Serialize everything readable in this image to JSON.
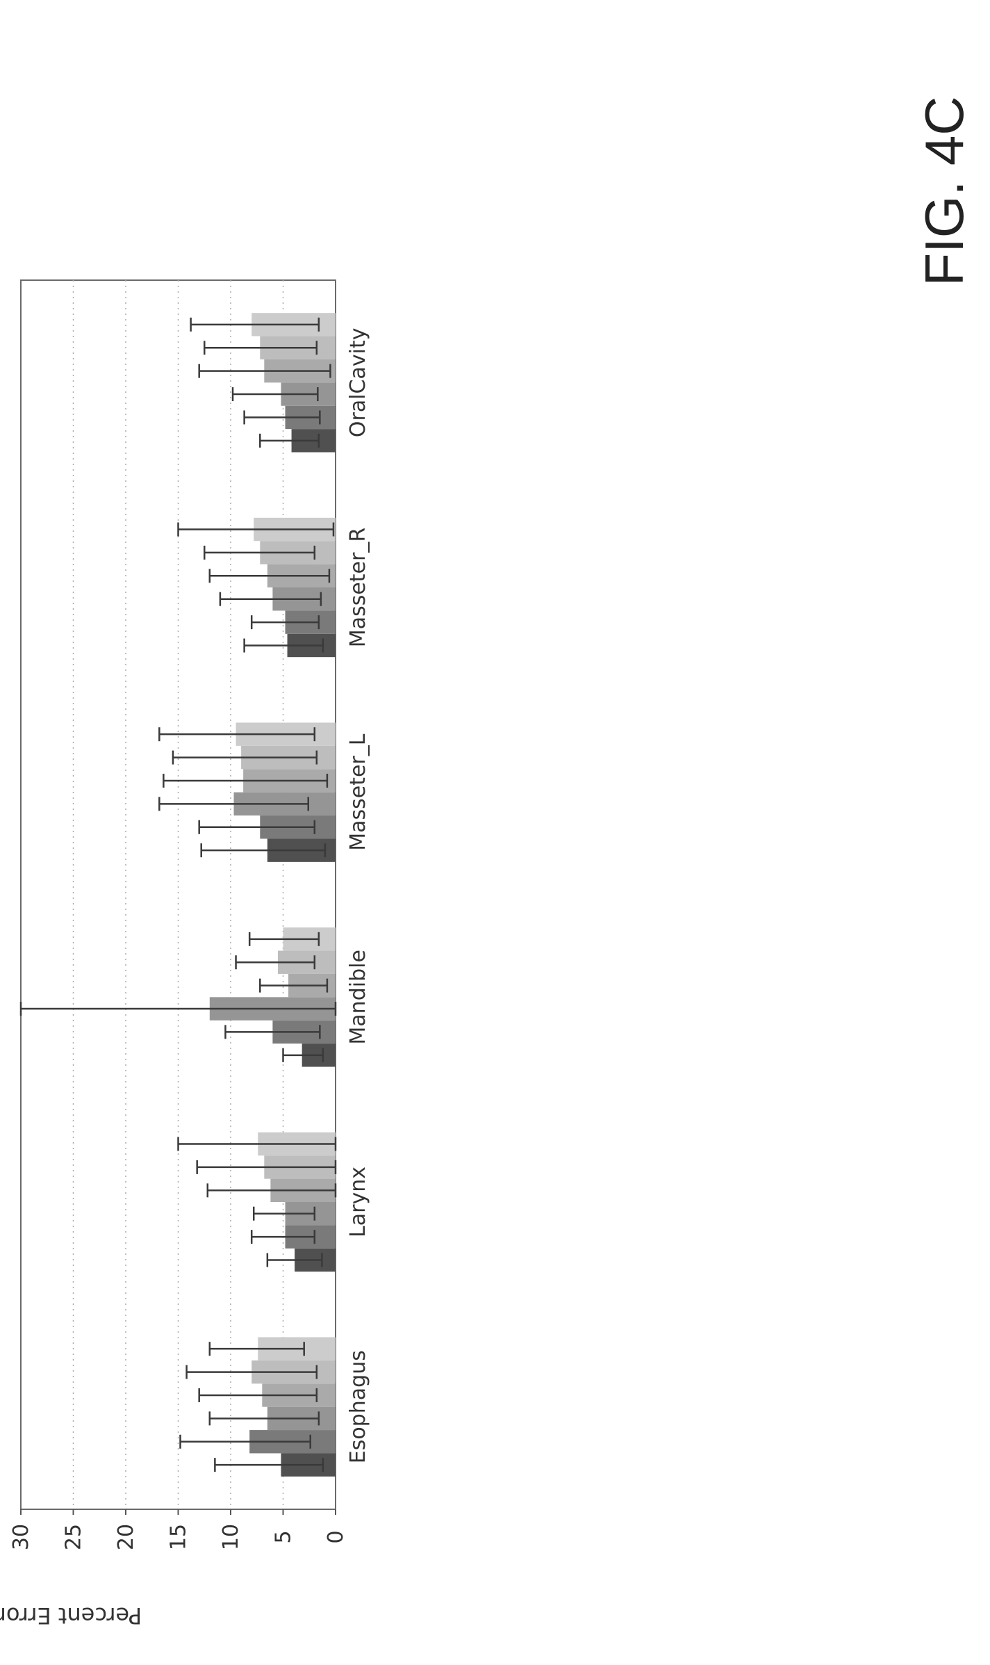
{
  "figure_label": "FIG. 4C",
  "chart_data": {
    "type": "bar",
    "orientation": "rotated-90-ccw",
    "title": "",
    "xlabel": "",
    "ylabel": "Percent Error",
    "ylim": [
      0,
      30
    ],
    "yticks": [
      "0",
      "5",
      "10",
      "15",
      "20",
      "25",
      "30"
    ],
    "grid": "horizontal dotted",
    "categories": [
      "Esophagus",
      "Larynx",
      "Mandible",
      "Masseter_L",
      "Masseter_R",
      "OralCavity"
    ],
    "series_count_per_category": 6,
    "colors": [
      "#505050",
      "#7a7a7a",
      "#959595",
      "#aaaaaa",
      "#bdbdbd",
      "#cccccc"
    ],
    "series": [
      {
        "values": [
          5.2,
          3.9,
          3.2,
          6.5,
          4.6,
          4.2
        ],
        "error_low": [
          1.2,
          1.3,
          1.2,
          1.0,
          1.2,
          1.6
        ],
        "error_high": [
          11.5,
          6.5,
          5.0,
          12.8,
          8.7,
          7.2
        ]
      },
      {
        "values": [
          8.2,
          4.8,
          6.0,
          7.2,
          4.8,
          4.8
        ],
        "error_low": [
          2.4,
          2.0,
          1.5,
          2.0,
          1.6,
          1.5
        ],
        "error_high": [
          14.8,
          8.0,
          10.5,
          13.0,
          8.0,
          8.7
        ]
      },
      {
        "values": [
          6.5,
          4.8,
          12.0,
          9.7,
          6.0,
          5.2
        ],
        "error_low": [
          1.6,
          2.0,
          0.0,
          2.6,
          1.4,
          1.7
        ],
        "error_high": [
          12.0,
          7.8,
          30.0,
          16.8,
          11.0,
          9.8
        ]
      },
      {
        "values": [
          7.0,
          6.2,
          4.5,
          8.8,
          6.5,
          6.8
        ],
        "error_low": [
          1.8,
          0.0,
          0.8,
          0.8,
          0.6,
          0.5
        ],
        "error_high": [
          13.0,
          12.2,
          7.2,
          16.4,
          12.0,
          13.0
        ]
      },
      {
        "values": [
          8.0,
          6.8,
          5.5,
          9.0,
          7.2,
          7.2
        ],
        "error_low": [
          1.8,
          0.0,
          2.0,
          1.8,
          2.0,
          1.8
        ],
        "error_high": [
          14.2,
          13.2,
          9.5,
          15.5,
          12.5,
          12.5
        ]
      },
      {
        "values": [
          7.4,
          7.4,
          5.0,
          9.5,
          7.8,
          8.0
        ],
        "error_low": [
          3.0,
          0.0,
          1.6,
          2.0,
          0.2,
          1.6
        ],
        "error_high": [
          12.0,
          15.0,
          8.2,
          16.8,
          15.0,
          13.8
        ]
      }
    ]
  }
}
